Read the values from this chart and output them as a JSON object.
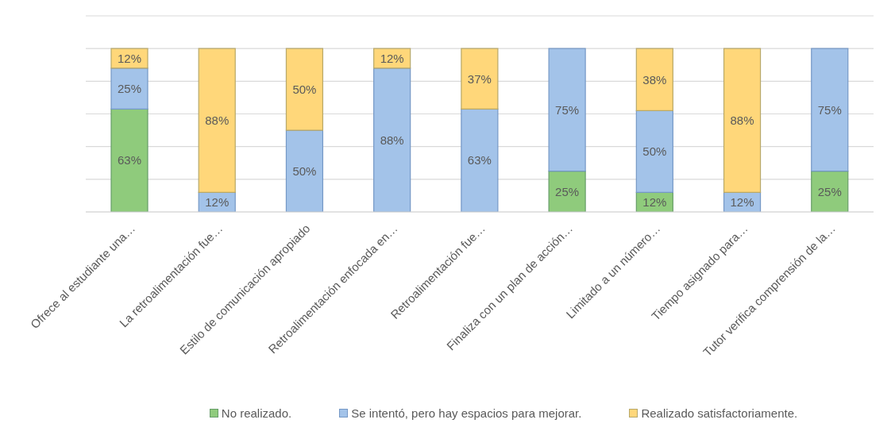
{
  "chart_data": {
    "type": "bar",
    "stacked": true,
    "categories": [
      "Ofrece al estudiante una…",
      "La retroalimentación fue…",
      "Estilo de comunicación apropiado",
      "Retroalimentación enfocada en…",
      "Retroalimentación fue…",
      "Finaliza con un plan de acción…",
      "Limitado a un número…",
      "Tiempo asignado para…",
      "Tutor verifica comprensión de la…"
    ],
    "series": [
      {
        "name": "No realizado.",
        "color": "#8fcb7c",
        "values": [
          63,
          null,
          null,
          null,
          null,
          25,
          12,
          null,
          25
        ],
        "value_labels": [
          "63%",
          null,
          null,
          null,
          null,
          "25%",
          "12%",
          null,
          "25%"
        ]
      },
      {
        "name": "Se intentó, pero hay espacios para mejorar.",
        "color": "#a3c3e9",
        "values": [
          25,
          12,
          50,
          88,
          63,
          75,
          50,
          12,
          75
        ],
        "value_labels": [
          "25%",
          "12%",
          "50%",
          "88%",
          "63%",
          "75%",
          "50%",
          "12%",
          "75%"
        ]
      },
      {
        "name": "Realizado satisfactoriamente.",
        "color": "#ffd77a",
        "values": [
          12,
          88,
          50,
          12,
          37,
          null,
          38,
          88,
          null
        ],
        "value_labels": [
          "12%",
          "88%",
          "50%",
          "12%",
          "37%",
          null,
          "38%",
          "88%",
          null
        ]
      }
    ],
    "tick_labels": "x",
    "grid": "y",
    "legend": "bottom"
  }
}
